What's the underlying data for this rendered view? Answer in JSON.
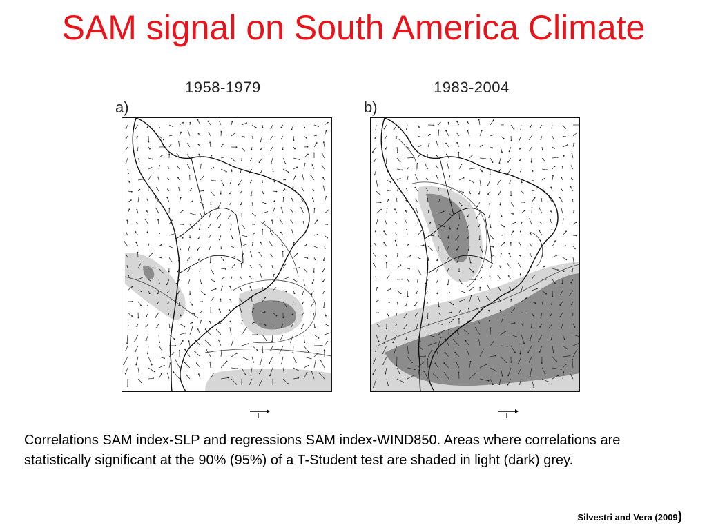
{
  "slide": {
    "title": "SAM signal on South America Climate",
    "title_color": "#e8141b"
  },
  "panels": [
    {
      "period": "1958-1979",
      "tag": "a)"
    },
    {
      "period": "1983-2004",
      "tag": "b)"
    }
  ],
  "caption": "Correlations SAM index-SLP and regressions SAM index-WIND850. Areas where correlations are statistically significant at the 90% (95%) of a T-Student test are shaded in light (dark) grey.",
  "citation": {
    "text": "Silvestri and Vera (2009",
    "close": ")"
  },
  "colors": {
    "light_grey": "#d6d6d6",
    "dark_grey": "#8c8c8c",
    "coast": "#111111"
  }
}
